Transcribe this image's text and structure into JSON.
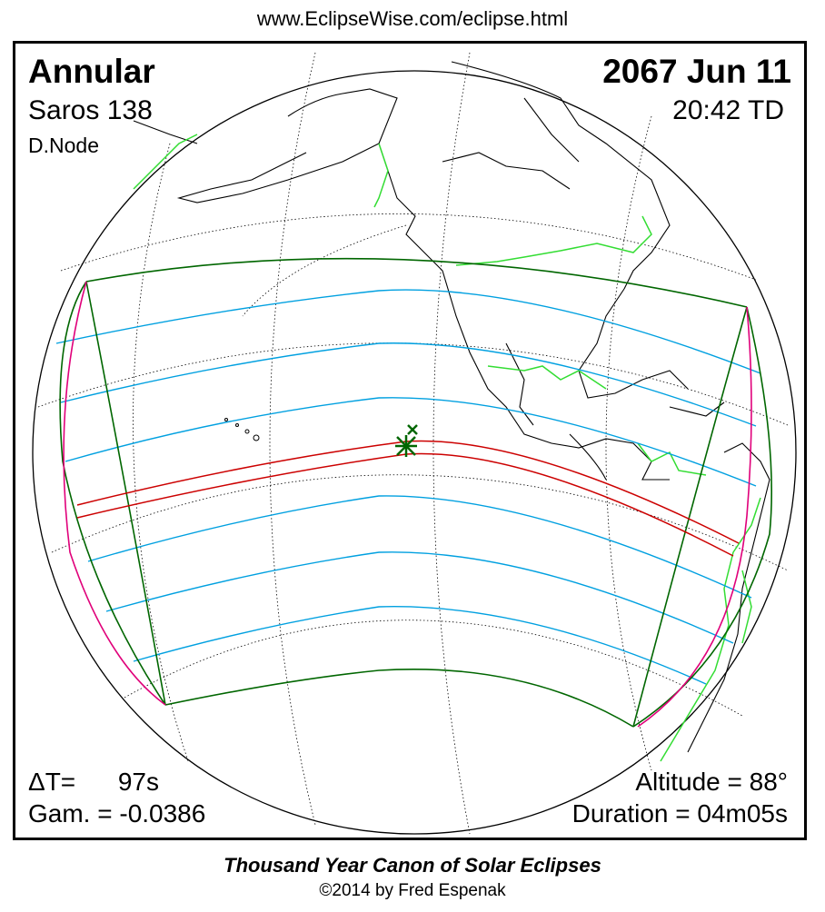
{
  "header": {
    "url": "www.EclipseWise.com/eclipse.html"
  },
  "eclipse": {
    "type": "Annular",
    "date": "2067 Jun 11",
    "saros": "Saros 138",
    "time": "20:42 TD",
    "node": "D.Node",
    "delta_t": "ΔT=      97s",
    "gamma": "Gam. = -0.0386",
    "altitude": "Altitude = 88°",
    "duration": "Duration = 04m05s"
  },
  "footer": {
    "canon": "Thousand Year Canon of Solar Eclipses",
    "copyright": "©2014 by Fred Espenak"
  },
  "colors": {
    "central_path": "#cc0000",
    "penumbra_limits": "#006600",
    "penumbra_contours": "#00a0e0",
    "rise_set_curves": "#e0007a",
    "coastlines": "#000000",
    "political_borders": "#33dd33",
    "greatest_eclipse_marker": "#006600"
  }
}
